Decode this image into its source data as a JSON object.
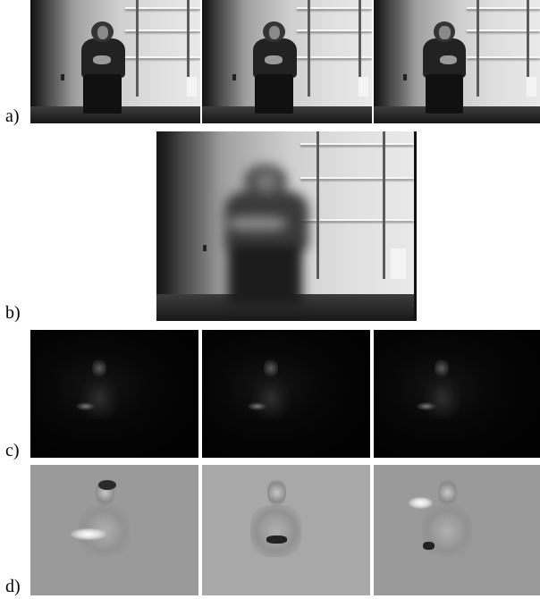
{
  "figure": {
    "labels": [
      "a)",
      "b)",
      "c)",
      "d)"
    ],
    "rows": [
      {
        "label_index": 0,
        "description_kind": "video frames",
        "count": 3
      },
      {
        "label_index": 1,
        "description_kind": "motion-blurred average frame",
        "count": 1
      },
      {
        "label_index": 2,
        "description_kind": "dark difference frames",
        "count": 3
      },
      {
        "label_index": 3,
        "description_kind": "gray flow fields",
        "count": 3
      }
    ]
  }
}
